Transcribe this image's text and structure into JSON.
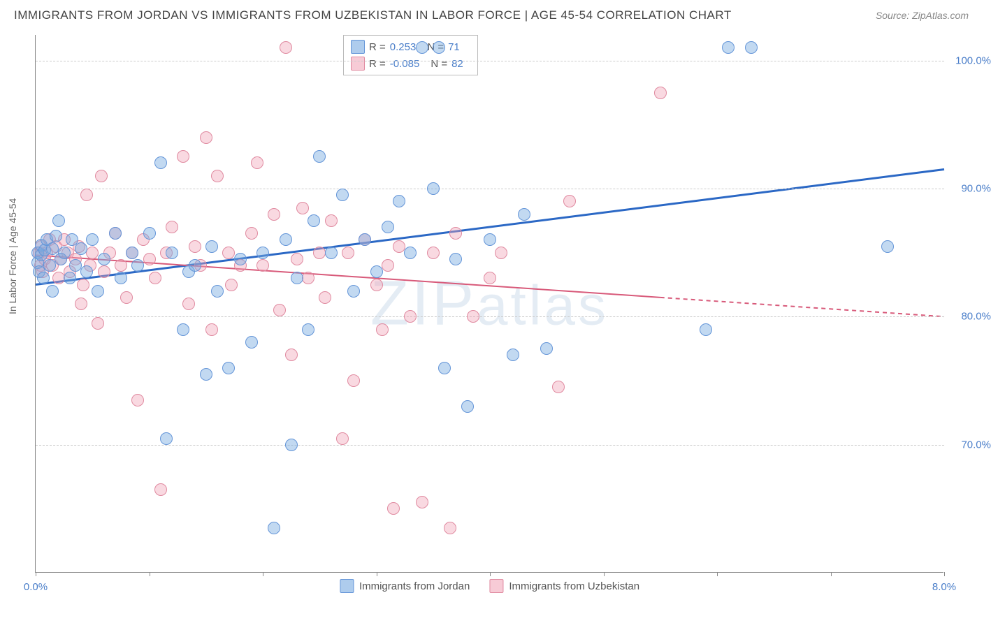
{
  "header": {
    "title": "IMMIGRANTS FROM JORDAN VS IMMIGRANTS FROM UZBEKISTAN IN LABOR FORCE | AGE 45-54 CORRELATION CHART",
    "source": "Source: ZipAtlas.com"
  },
  "chart": {
    "type": "scatter",
    "ylabel": "In Labor Force | Age 45-54",
    "watermark": "ZIPatlas",
    "background_color": "#ffffff",
    "grid_color": "#cccccc",
    "axis_color": "#888888",
    "xlim": [
      0.0,
      8.0
    ],
    "ylim": [
      60.0,
      102.0
    ],
    "xticks": [
      0.0,
      1.0,
      2.0,
      3.0,
      4.0,
      5.0,
      6.0,
      7.0,
      8.0
    ],
    "xtick_labels": {
      "0": "0.0%",
      "8": "8.0%"
    },
    "yticks": [
      70.0,
      80.0,
      90.0,
      100.0
    ],
    "ytick_labels": [
      "70.0%",
      "80.0%",
      "90.0%",
      "100.0%"
    ],
    "point_radius": 9,
    "series": [
      {
        "key": "jordan",
        "label": "Immigrants from Jordan",
        "color_fill": "rgba(120,170,225,0.45)",
        "color_stroke": "#6495d8",
        "R": "0.253",
        "N": "71",
        "trend": {
          "x1": 0.0,
          "y1": 82.5,
          "x2": 8.0,
          "y2": 91.5,
          "color": "#2b68c5",
          "width": 3,
          "dash_after_x": 8.0
        },
        "points": [
          [
            0.02,
            85.0
          ],
          [
            0.02,
            84.2
          ],
          [
            0.03,
            83.5
          ],
          [
            0.05,
            84.8
          ],
          [
            0.05,
            85.6
          ],
          [
            0.07,
            83.0
          ],
          [
            0.08,
            85.2
          ],
          [
            0.1,
            86.0
          ],
          [
            0.12,
            84.0
          ],
          [
            0.15,
            85.3
          ],
          [
            0.15,
            82.0
          ],
          [
            0.18,
            86.3
          ],
          [
            0.2,
            87.5
          ],
          [
            0.22,
            84.5
          ],
          [
            0.25,
            85.0
          ],
          [
            0.3,
            83.0
          ],
          [
            0.32,
            86.0
          ],
          [
            0.35,
            84.0
          ],
          [
            0.4,
            85.3
          ],
          [
            0.45,
            83.5
          ],
          [
            0.5,
            86.0
          ],
          [
            0.55,
            82.0
          ],
          [
            0.6,
            84.5
          ],
          [
            0.7,
            86.5
          ],
          [
            0.75,
            83.0
          ],
          [
            0.85,
            85.0
          ],
          [
            0.9,
            84.0
          ],
          [
            1.0,
            86.5
          ],
          [
            1.1,
            92.0
          ],
          [
            1.15,
            70.5
          ],
          [
            1.2,
            85.0
          ],
          [
            1.3,
            79.0
          ],
          [
            1.35,
            83.5
          ],
          [
            1.4,
            84.0
          ],
          [
            1.5,
            75.5
          ],
          [
            1.55,
            85.5
          ],
          [
            1.6,
            82.0
          ],
          [
            1.7,
            76.0
          ],
          [
            1.8,
            84.5
          ],
          [
            1.9,
            78.0
          ],
          [
            2.0,
            85.0
          ],
          [
            2.1,
            63.5
          ],
          [
            2.2,
            86.0
          ],
          [
            2.25,
            70.0
          ],
          [
            2.3,
            83.0
          ],
          [
            2.4,
            79.0
          ],
          [
            2.45,
            87.5
          ],
          [
            2.5,
            92.5
          ],
          [
            2.6,
            85.0
          ],
          [
            2.7,
            89.5
          ],
          [
            2.8,
            82.0
          ],
          [
            2.9,
            86.0
          ],
          [
            3.0,
            83.5
          ],
          [
            3.1,
            87.0
          ],
          [
            3.2,
            89.0
          ],
          [
            3.3,
            85.0
          ],
          [
            3.4,
            101.0
          ],
          [
            3.5,
            90.0
          ],
          [
            3.55,
            101.0
          ],
          [
            3.6,
            76.0
          ],
          [
            3.7,
            84.5
          ],
          [
            3.8,
            73.0
          ],
          [
            4.0,
            86.0
          ],
          [
            4.2,
            77.0
          ],
          [
            4.3,
            88.0
          ],
          [
            4.5,
            77.5
          ],
          [
            5.9,
            79.0
          ],
          [
            6.1,
            101.0
          ],
          [
            6.3,
            101.0
          ],
          [
            7.5,
            85.5
          ]
        ]
      },
      {
        "key": "uzbekistan",
        "label": "Immigrants from Uzbekistan",
        "color_fill": "rgba(240,160,180,0.40)",
        "color_stroke": "#e08aa0",
        "R": "-0.085",
        "N": "82",
        "trend": {
          "x1": 0.0,
          "y1": 84.8,
          "x2": 5.5,
          "y2": 81.5,
          "color": "#d85a7a",
          "width": 2,
          "dash_after_x": 5.5,
          "dash_x2": 8.0,
          "dash_y2": 80.0
        },
        "points": [
          [
            0.03,
            85.0
          ],
          [
            0.04,
            84.0
          ],
          [
            0.05,
            85.5
          ],
          [
            0.06,
            83.5
          ],
          [
            0.08,
            84.5
          ],
          [
            0.1,
            85.0
          ],
          [
            0.12,
            86.0
          ],
          [
            0.15,
            84.0
          ],
          [
            0.18,
            85.5
          ],
          [
            0.2,
            83.0
          ],
          [
            0.22,
            84.5
          ],
          [
            0.25,
            86.0
          ],
          [
            0.28,
            85.0
          ],
          [
            0.3,
            83.5
          ],
          [
            0.35,
            84.5
          ],
          [
            0.38,
            85.5
          ],
          [
            0.4,
            81.0
          ],
          [
            0.42,
            82.5
          ],
          [
            0.45,
            89.5
          ],
          [
            0.48,
            84.0
          ],
          [
            0.5,
            85.0
          ],
          [
            0.55,
            79.5
          ],
          [
            0.58,
            91.0
          ],
          [
            0.6,
            83.5
          ],
          [
            0.65,
            85.0
          ],
          [
            0.7,
            86.5
          ],
          [
            0.75,
            84.0
          ],
          [
            0.8,
            81.5
          ],
          [
            0.85,
            85.0
          ],
          [
            0.9,
            73.5
          ],
          [
            0.95,
            86.0
          ],
          [
            1.0,
            84.5
          ],
          [
            1.05,
            83.0
          ],
          [
            1.1,
            66.5
          ],
          [
            1.15,
            85.0
          ],
          [
            1.2,
            87.0
          ],
          [
            1.3,
            92.5
          ],
          [
            1.35,
            81.0
          ],
          [
            1.4,
            85.5
          ],
          [
            1.45,
            84.0
          ],
          [
            1.5,
            94.0
          ],
          [
            1.55,
            79.0
          ],
          [
            1.6,
            91.0
          ],
          [
            1.7,
            85.0
          ],
          [
            1.72,
            82.5
          ],
          [
            1.8,
            84.0
          ],
          [
            1.9,
            86.5
          ],
          [
            1.95,
            92.0
          ],
          [
            2.0,
            84.0
          ],
          [
            2.1,
            88.0
          ],
          [
            2.15,
            80.5
          ],
          [
            2.2,
            101.0
          ],
          [
            2.25,
            77.0
          ],
          [
            2.3,
            84.5
          ],
          [
            2.35,
            88.5
          ],
          [
            2.4,
            83.0
          ],
          [
            2.5,
            85.0
          ],
          [
            2.55,
            81.5
          ],
          [
            2.6,
            87.5
          ],
          [
            2.7,
            70.5
          ],
          [
            2.75,
            85.0
          ],
          [
            2.8,
            75.0
          ],
          [
            2.9,
            86.0
          ],
          [
            3.0,
            82.5
          ],
          [
            3.05,
            79.0
          ],
          [
            3.1,
            84.0
          ],
          [
            3.15,
            65.0
          ],
          [
            3.2,
            85.5
          ],
          [
            3.3,
            80.0
          ],
          [
            3.4,
            65.5
          ],
          [
            3.5,
            85.0
          ],
          [
            3.65,
            63.5
          ],
          [
            3.7,
            86.5
          ],
          [
            3.85,
            80.0
          ],
          [
            4.0,
            83.0
          ],
          [
            4.1,
            85.0
          ],
          [
            4.6,
            74.5
          ],
          [
            4.7,
            89.0
          ],
          [
            5.5,
            97.5
          ]
        ]
      }
    ]
  }
}
